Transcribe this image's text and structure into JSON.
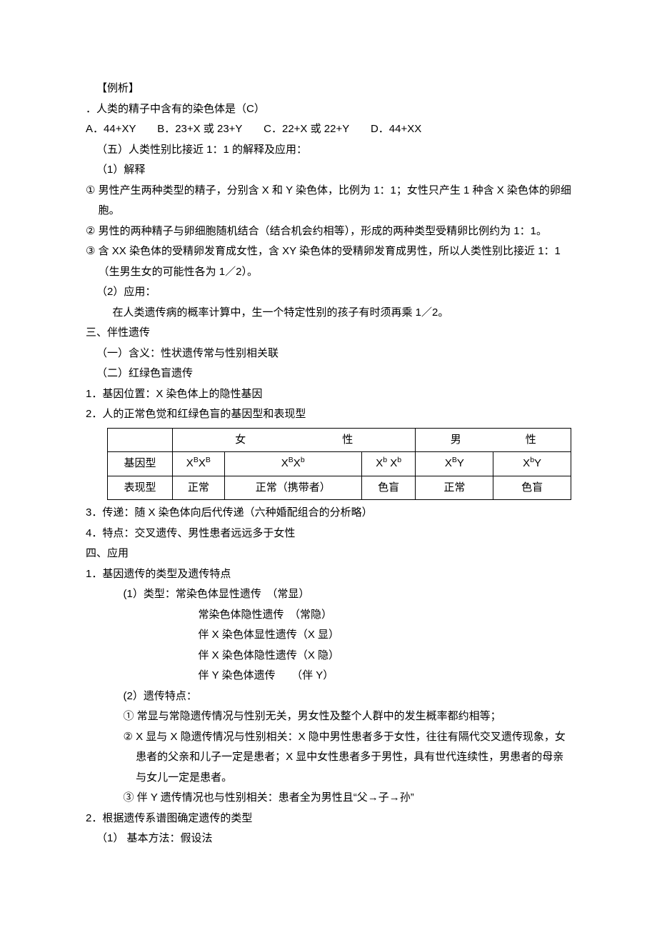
{
  "lines": {
    "l1": "【例析】",
    "l2": "．人类的精子中含有的染色体是（C）",
    "l3": "A．44+XY　　B．23+X 或 23+Y　　C．22+X 或 22+Y　　D．44+XX",
    "l4": "（五）人类性别比接近 1：1 的解释及应用：",
    "l5": "（1）解释",
    "l6": "① 男性产生两种类型的精子，分别含 X 和 Y 染色体，比例为 1：1；女性只产生 1 种含 X 染色体的卵细胞。",
    "l7": "② 男性的两种精子与卵细胞随机结合（结合机会约相等），形成的两种类型受精卵比例约为 1：1。",
    "l8": "③ 含 XX 染色体的受精卵发育成女性，含 XY 染色体的受精卵发育成男性，所以人类性别比接近 1：1（生男生女的可能性各为 1／2）。",
    "l9": "（2）应用：",
    "l10": "在人类遗传病的概率计算中，生一个特定性别的孩子有时须再乘 1／2。",
    "l11": "三、伴性遗传",
    "l12": "（一）含义：性状遗传常与性别相关联",
    "l13": "（二）红绿色盲遗传",
    "l14": "1．基因位置：X 染色体上的隐性基因",
    "l15": "2．人的正常色觉和红绿色盲的基因型和表现型",
    "l16": "3．传递：随 X 染色体向后代传递（六种婚配组合的分析略）",
    "l17": "4．特点：交叉遗传、男性患者远远多于女性",
    "l18": "四、应用",
    "l19": "1．基因遗传的类型及遗传特点",
    "l20": "(1）类型：常染色体显性遗传　（常显）",
    "l21": "常染色体隐性遗传　（常隐）",
    "l22": "伴 X 染色体显性遗传（X 显）",
    "l23": "伴 X 染色体隐性遗传（X 隐）",
    "l24": "伴 Y 染色体遗传　　（伴 Y）",
    "l25": "(2）遗传特点：",
    "l26": "① 常显与常隐遗传情况与性别无关，男女性及整个人群中的发生概率都约相等；",
    "l27": "② X 显与 X 隐遗传情况与性别相关：X 隐中男性患者多于女性，往往有隔代交叉遗传现象，女患者的父亲和儿子一定是患者；X 显中女性患者多于男性，具有世代连续性，男患者的母亲与女儿一定是患者。",
    "l28": "③ 伴 Y 遗传情况也与性别相关：患者全为男性且“父→子→孙”",
    "l29": "2．根据遗传系谱图确定遗传的类型",
    "l30": "（1） 基本方法：假设法"
  },
  "table": {
    "h_female": "女",
    "h_male": "男",
    "h_sex_suffix": "性",
    "r1c0": "基因型",
    "r1c1a": "X",
    "r1c1b": "B",
    "r1c1c": "X",
    "r1c1d": "B",
    "r1c2a": "X",
    "r1c2b": "B",
    "r1c2c": "X",
    "r1c2d": "b",
    "r1c3a": "X",
    "r1c3b": "b",
    "r1c3c": " X",
    "r1c3d": "b",
    "r1c4a": "X",
    "r1c4b": "B",
    "r1c4c": "Y",
    "r1c5a": "X",
    "r1c5b": "b",
    "r1c5c": "Y",
    "r2c0": "表现型",
    "r2c1": "正常",
    "r2c2": "正常（携带者）",
    "r2c3": "色盲",
    "r2c4": "正常",
    "r2c5": "色盲"
  },
  "style": {
    "font_size_pt": 11,
    "line_height": 1.9,
    "text_color": "#000000",
    "background_color": "#ffffff",
    "table_border_color": "#000000"
  }
}
